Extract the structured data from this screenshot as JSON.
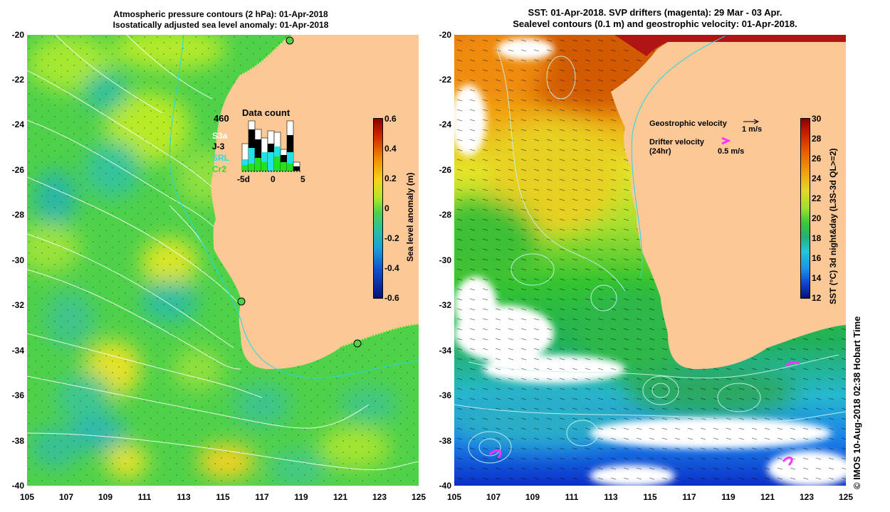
{
  "left_panel": {
    "title_line1": "Atmospheric pressure contours (2 hPa): 01-Apr-2018",
    "title_line2": "Isostatically adjusted sea level anomaly: 01-Apr-2018",
    "data_count": {
      "title": "Data count",
      "total": "460",
      "missions": [
        {
          "name": "S3a",
          "color": "#ffffff"
        },
        {
          "name": "J-3",
          "color": "#000000"
        },
        {
          "name": "SRL",
          "color": "#22e0e8"
        },
        {
          "name": "Cr2",
          "color": "#22e022"
        }
      ],
      "x_ticks": [
        "-5d",
        "0",
        "5"
      ]
    },
    "colorbar": {
      "label": "Sea level anomaly (m)",
      "ticks": [
        "0.6",
        "0.4",
        "0.2",
        "0",
        "-0.2",
        "-0.4",
        "-0.6"
      ],
      "range": [
        -0.6,
        0.6
      ]
    }
  },
  "right_panel": {
    "title_line1": "SST: 01-Apr-2018. SVP drifters (magenta): 29 Mar - 03 Apr.",
    "title_line2": "Sealevel contours (0.1 m) and geostrophic velocity: 01-Apr-2018.",
    "legend": {
      "geostrophic_label": "Geostrophic velocity",
      "geostrophic_scale": "1 m/s",
      "drifter_label_line1": "Drifter velocity",
      "drifter_label_line2": "(24hr)",
      "drifter_scale": "0.5 m/s"
    },
    "colorbar": {
      "label": "SST (°C) 3d night&day (L3S-3d QL>=2)",
      "ticks": [
        "30",
        "28",
        "26",
        "24",
        "22",
        "20",
        "18",
        "16",
        "14",
        "12"
      ],
      "range": [
        12,
        30
      ]
    }
  },
  "axes": {
    "x_ticks": [
      "105",
      "107",
      "109",
      "111",
      "113",
      "115",
      "117",
      "119",
      "121",
      "123",
      "125"
    ],
    "y_ticks": [
      "-20",
      "-22",
      "-24",
      "-26",
      "-28",
      "-30",
      "-32",
      "-34",
      "-36",
      "-38",
      "-40"
    ]
  },
  "credit": "© IMOS 10-Aug-2018 02:38 Hobart Time",
  "colors": {
    "land": "#fcc896",
    "sea_green": "#4fd14a",
    "magenta": "#ff33ff"
  }
}
